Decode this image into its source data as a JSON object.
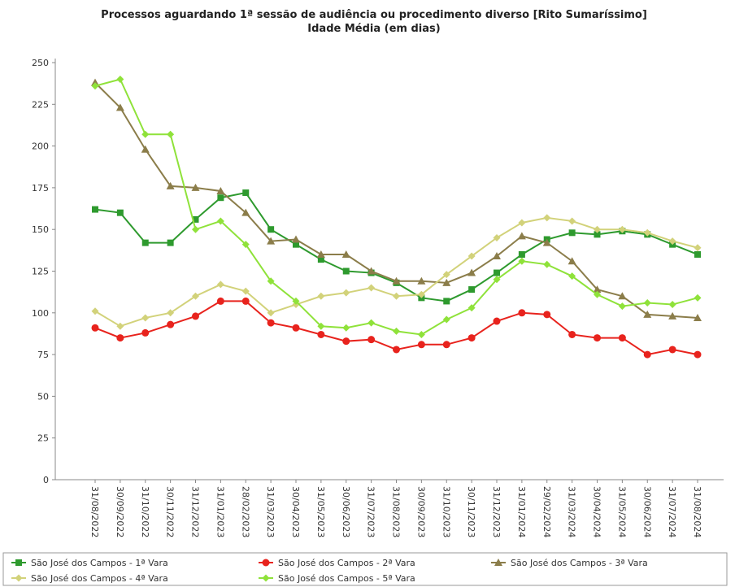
{
  "chart_data": {
    "type": "line",
    "title": "Processos aguardando 1ª sessão de audiência ou procedimento diverso [Rito Sumaríssimo]",
    "subtitle": "Idade Média (em dias)",
    "categories": [
      "31/08/2022",
      "30/09/2022",
      "31/10/2022",
      "30/11/2022",
      "31/12/2022",
      "31/01/2023",
      "28/02/2023",
      "31/03/2023",
      "30/04/2023",
      "31/05/2023",
      "30/06/2023",
      "31/07/2023",
      "31/08/2023",
      "30/09/2023",
      "31/10/2023",
      "30/11/2023",
      "31/12/2023",
      "31/01/2024",
      "29/02/2024",
      "31/03/2024",
      "30/04/2024",
      "31/05/2024",
      "30/06/2024",
      "31/07/2024",
      "31/08/2024"
    ],
    "ylim": [
      0,
      250
    ],
    "yticks": [
      0,
      25,
      50,
      75,
      100,
      125,
      150,
      175,
      200,
      225,
      250
    ],
    "grid": false,
    "legend": "bottom",
    "series": [
      {
        "name": "São José dos Campos - 1ª Vara",
        "color": "#2e9a2e",
        "marker": "square",
        "values": [
          162,
          160,
          142,
          142,
          156,
          169,
          172,
          150,
          141,
          132,
          125,
          124,
          118,
          109,
          107,
          114,
          124,
          135,
          144,
          148,
          147,
          149,
          147,
          141,
          135
        ]
      },
      {
        "name": "São José dos Campos - 2ª Vara",
        "color": "#e8231d",
        "marker": "circle",
        "values": [
          91,
          85,
          88,
          93,
          98,
          107,
          107,
          94,
          91,
          87,
          83,
          84,
          78,
          81,
          81,
          85,
          95,
          100,
          99,
          87,
          85,
          85,
          75,
          78,
          75
        ]
      },
      {
        "name": "São José dos Campos - 3ª Vara",
        "color": "#8b7d4a",
        "marker": "triangle",
        "values": [
          238,
          223,
          198,
          176,
          175,
          173,
          160,
          143,
          144,
          135,
          135,
          125,
          119,
          119,
          118,
          124,
          134,
          146,
          142,
          131,
          114,
          110,
          99,
          98,
          97
        ]
      },
      {
        "name": "São José dos Campos - 4ª Vara",
        "color": "#d2d27a",
        "marker": "diamond",
        "values": [
          101,
          92,
          97,
          100,
          110,
          117,
          113,
          100,
          105,
          110,
          112,
          115,
          110,
          111,
          123,
          134,
          145,
          154,
          157,
          155,
          150,
          150,
          148,
          143,
          139
        ]
      },
      {
        "name": "São José dos Campos - 5ª Vara",
        "color": "#8fe23a",
        "marker": "diamond",
        "values": [
          236,
          240,
          207,
          207,
          150,
          155,
          141,
          119,
          107,
          92,
          91,
          94,
          89,
          87,
          96,
          103,
          120,
          131,
          129,
          122,
          111,
          104,
          106,
          105,
          109
        ]
      }
    ]
  }
}
